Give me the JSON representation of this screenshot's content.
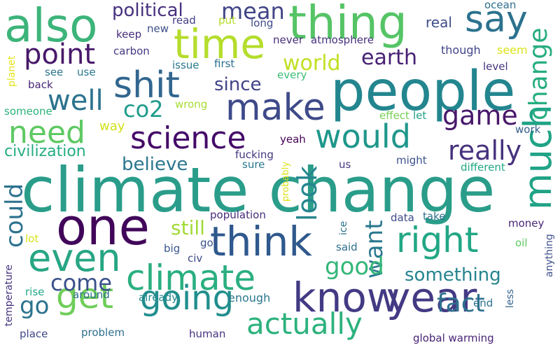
{
  "words": [
    {
      "text": "climate change",
      "color": "#2a9d8a"
    },
    {
      "text": "people",
      "color": "#23868f"
    },
    {
      "text": "one",
      "color": "#41065a"
    },
    {
      "text": "also",
      "color": "#3cb47a"
    },
    {
      "text": "thing",
      "color": "#55c466"
    },
    {
      "text": "time",
      "color": "#b4dd2c"
    },
    {
      "text": "think",
      "color": "#2f598d"
    },
    {
      "text": "know",
      "color": "#433a84"
    },
    {
      "text": "year",
      "color": "#433a84"
    },
    {
      "text": "even",
      "color": "#27a684"
    },
    {
      "text": "make",
      "color": "#3e4a89"
    },
    {
      "text": "shit",
      "color": "#31668e"
    },
    {
      "text": "climate",
      "color": "#2aaf80"
    },
    {
      "text": "much",
      "color": "#20a386"
    },
    {
      "text": "right",
      "color": "#22a785"
    },
    {
      "text": "get",
      "color": "#6ece58"
    },
    {
      "text": "going",
      "color": "#218e8d"
    },
    {
      "text": "actually",
      "color": "#2db27d"
    },
    {
      "text": "say",
      "color": "#2c728e"
    },
    {
      "text": "would",
      "color": "#1f978b"
    },
    {
      "text": "science",
      "color": "#440a68"
    },
    {
      "text": "need",
      "color": "#5ec962"
    },
    {
      "text": "point",
      "color": "#48186a"
    },
    {
      "text": "well",
      "color": "#2c738e"
    },
    {
      "text": "change",
      "color": "#27ad81"
    },
    {
      "text": "game",
      "color": "#48186a"
    },
    {
      "text": "really",
      "color": "#46327e"
    },
    {
      "text": "look",
      "color": "#25858e"
    },
    {
      "text": "could",
      "color": "#2c728e"
    },
    {
      "text": "want",
      "color": "#2a788e"
    },
    {
      "text": "good",
      "color": "#35b779"
    },
    {
      "text": "come",
      "color": "#3b528b"
    },
    {
      "text": "go",
      "color": "#2c728e"
    },
    {
      "text": "fact",
      "color": "#2d708e"
    },
    {
      "text": "earth",
      "color": "#482173"
    },
    {
      "text": "world",
      "color": "#c2df23"
    },
    {
      "text": "co2",
      "color": "#1e9b8a"
    },
    {
      "text": "mean",
      "color": "#414487"
    },
    {
      "text": "political",
      "color": "#46307e"
    },
    {
      "text": "still",
      "color": "#a2da37"
    },
    {
      "text": "something",
      "color": "#25848e"
    },
    {
      "text": "believe",
      "color": "#2a768e"
    },
    {
      "text": "civilization",
      "color": "#25ac82"
    },
    {
      "text": "since",
      "color": "#404387"
    },
    {
      "text": "real",
      "color": "#3d4d8a"
    },
    {
      "text": "way",
      "color": "#d0e11c"
    },
    {
      "text": "keep",
      "color": "#472c7a"
    },
    {
      "text": "new",
      "color": "#3c4f8a"
    },
    {
      "text": "read",
      "color": "#433e85"
    },
    {
      "text": "put",
      "color": "#b5de2b"
    },
    {
      "text": "long",
      "color": "#3e4989"
    },
    {
      "text": "ocean",
      "color": "#2e6e8e"
    },
    {
      "text": "carbon",
      "color": "#453781"
    },
    {
      "text": "never",
      "color": "#472d7b"
    },
    {
      "text": "atmosphere",
      "color": "#46327e"
    },
    {
      "text": "though",
      "color": "#404588"
    },
    {
      "text": "seem",
      "color": "#dde318"
    },
    {
      "text": "see",
      "color": "#2b748e"
    },
    {
      "text": "use",
      "color": "#2a788e"
    },
    {
      "text": "issue",
      "color": "#2a788e"
    },
    {
      "text": "first",
      "color": "#2d718e"
    },
    {
      "text": "every",
      "color": "#3cbc74"
    },
    {
      "text": "level",
      "color": "#463480"
    },
    {
      "text": "back",
      "color": "#482878"
    },
    {
      "text": "planet",
      "color": "#e5e419"
    },
    {
      "text": "wrong",
      "color": "#a8db34"
    },
    {
      "text": "someone",
      "color": "#2db27d"
    },
    {
      "text": "effect",
      "color": "#75d054"
    },
    {
      "text": "let",
      "color": "#1fa088"
    },
    {
      "text": "work",
      "color": "#355e8d"
    },
    {
      "text": "yeah",
      "color": "#440154"
    },
    {
      "text": "fucking",
      "color": "#453882"
    },
    {
      "text": "sure",
      "color": "#2a788e"
    },
    {
      "text": "probably",
      "color": "#dde318"
    },
    {
      "text": "us",
      "color": "#443983"
    },
    {
      "text": "might",
      "color": "#3b528b"
    },
    {
      "text": "different",
      "color": "#22a884"
    },
    {
      "text": "population",
      "color": "#472a7a"
    },
    {
      "text": "ice",
      "color": "#2c718e"
    },
    {
      "text": "data",
      "color": "#3e4a89"
    },
    {
      "text": "take",
      "color": "#2d708e"
    },
    {
      "text": "money",
      "color": "#482576"
    },
    {
      "text": "lot",
      "color": "#d8e219"
    },
    {
      "text": "big",
      "color": "#39568c"
    },
    {
      "text": "got",
      "color": "#3b528b"
    },
    {
      "text": "said",
      "color": "#2d708e"
    },
    {
      "text": "oil",
      "color": "#5ec962"
    },
    {
      "text": "anything",
      "color": "#3c4f8a"
    },
    {
      "text": "civ",
      "color": "#3e4989"
    },
    {
      "text": "temperature",
      "color": "#46337f"
    },
    {
      "text": "rise",
      "color": "#22a785"
    },
    {
      "text": "around",
      "color": "#2d708e"
    },
    {
      "text": "already",
      "color": "#24878e"
    },
    {
      "text": "enough",
      "color": "#2a768e"
    },
    {
      "text": "end",
      "color": "#2c728e"
    },
    {
      "text": "less",
      "color": "#33638d"
    },
    {
      "text": "place",
      "color": "#3f4788"
    },
    {
      "text": "problem",
      "color": "#2e6f8e"
    },
    {
      "text": "human",
      "color": "#46327e"
    },
    {
      "text": "global warming",
      "color": "#482475"
    }
  ]
}
